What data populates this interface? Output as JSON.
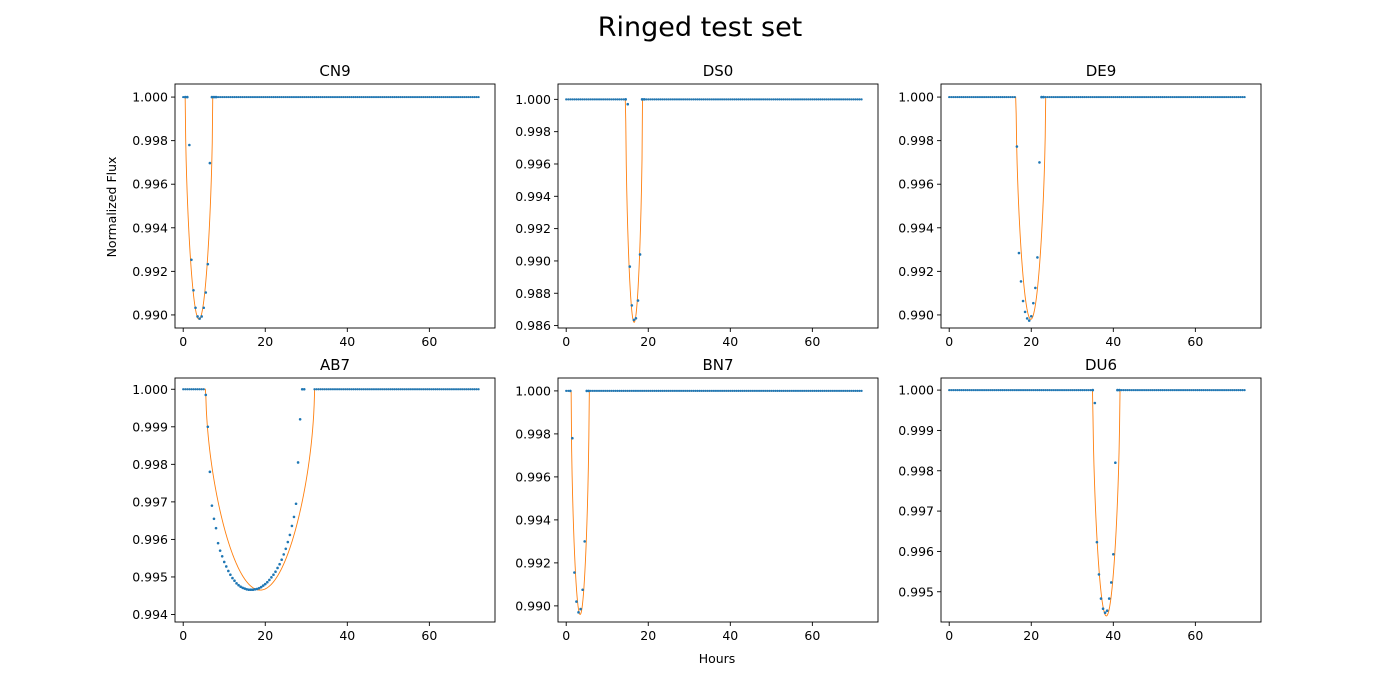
{
  "figure": {
    "title": "Ringed test set",
    "xlabel": "Hours",
    "ylabel": "Normalized Flux",
    "model_color": "#ff7f0e",
    "data_color": "#1f77b4"
  },
  "chart_data": [
    {
      "type": "scatter",
      "title": "CN9",
      "xlim": [
        -2,
        76
      ],
      "ylim": [
        0.9894,
        1.0006
      ],
      "xticks": [
        0,
        20,
        40,
        60
      ],
      "yticks": [
        0.99,
        0.992,
        0.994,
        0.996,
        0.998,
        1.0
      ],
      "ytick_labels": [
        "0.990",
        "0.992",
        "0.994",
        "0.996",
        "0.998",
        "1.000"
      ],
      "transit": {
        "start": 0.5,
        "end": 7.2,
        "depth": 0.0102
      },
      "series": [
        {
          "points": [
            [
              0.5,
              1.0
            ],
            [
              1.0,
              1.0
            ],
            [
              1.5,
              0.9978
            ],
            [
              2.0,
              0.99253
            ],
            [
              2.5,
              0.99113
            ],
            [
              3.0,
              0.99033
            ],
            [
              3.5,
              0.98993
            ],
            [
              4.0,
              0.98983
            ],
            [
              4.5,
              0.98993
            ],
            [
              5.0,
              0.99033
            ],
            [
              5.5,
              0.99103
            ],
            [
              6.0,
              0.99233
            ],
            [
              6.5,
              0.99697
            ],
            [
              7.0,
              1.0
            ],
            [
              7.5,
              1.0
            ],
            [
              8.0,
              1.0
            ]
          ]
        }
      ]
    },
    {
      "type": "scatter",
      "title": "DS0",
      "xlim": [
        -2,
        76
      ],
      "ylim": [
        0.98585,
        1.00095
      ],
      "xticks": [
        0,
        20,
        40,
        60
      ],
      "yticks": [
        0.986,
        0.988,
        0.99,
        0.992,
        0.994,
        0.996,
        0.998,
        1.0
      ],
      "ytick_labels": [
        "0.986",
        "0.988",
        "0.990",
        "0.992",
        "0.994",
        "0.996",
        "0.998",
        "1.000"
      ],
      "transit": {
        "start": 14.5,
        "end": 18.6,
        "depth": 0.0138
      },
      "series": [
        {
          "points": [
            [
              14.5,
              1.0
            ],
            [
              15.0,
              0.9997
            ],
            [
              15.5,
              0.98965
            ],
            [
              16.0,
              0.98725
            ],
            [
              16.5,
              0.98635
            ],
            [
              17.0,
              0.98645
            ],
            [
              17.5,
              0.98755
            ],
            [
              18.0,
              0.9904
            ],
            [
              18.5,
              1.0
            ],
            [
              19.0,
              1.0
            ]
          ]
        }
      ]
    },
    {
      "type": "scatter",
      "title": "DE9",
      "xlim": [
        -2,
        76
      ],
      "ylim": [
        0.9894,
        1.0006
      ],
      "xticks": [
        0,
        20,
        40,
        60
      ],
      "yticks": [
        0.99,
        0.992,
        0.994,
        0.996,
        0.998,
        1.0
      ],
      "ytick_labels": [
        "0.990",
        "0.992",
        "0.994",
        "0.996",
        "0.998",
        "1.000"
      ],
      "transit": {
        "start": 16.3,
        "end": 23.5,
        "depth": 0.0102
      },
      "series": [
        {
          "points": [
            [
              16.5,
              0.99773
            ],
            [
              17.0,
              0.99284
            ],
            [
              17.5,
              0.99154
            ],
            [
              18.0,
              0.99064
            ],
            [
              18.5,
              0.99014
            ],
            [
              19.0,
              0.98984
            ],
            [
              19.5,
              0.98974
            ],
            [
              20.0,
              0.98994
            ],
            [
              20.5,
              0.99054
            ],
            [
              21.0,
              0.99124
            ],
            [
              21.5,
              0.99264
            ],
            [
              22.0,
              0.997
            ],
            [
              22.5,
              1.0
            ],
            [
              23.0,
              1.0
            ]
          ]
        }
      ]
    },
    {
      "type": "scatter",
      "title": "AB7",
      "xlim": [
        -2,
        76
      ],
      "ylim": [
        0.9938,
        1.0003
      ],
      "xticks": [
        0,
        20,
        40,
        60
      ],
      "yticks": [
        0.994,
        0.995,
        0.996,
        0.997,
        0.998,
        0.999,
        1.0
      ],
      "ytick_labels": [
        "0.994",
        "0.995",
        "0.996",
        "0.997",
        "0.998",
        "0.999",
        "1.000"
      ],
      "transit": {
        "start": 5.5,
        "end": 32.0,
        "depth": 0.00535
      },
      "series": [
        {
          "points": [
            [
              5.5,
              0.99985
            ],
            [
              6.0,
              0.999
            ],
            [
              6.5,
              0.9978
            ],
            [
              7.0,
              0.9969
            ],
            [
              7.5,
              0.99655
            ],
            [
              8.0,
              0.9963
            ],
            [
              8.5,
              0.9959
            ],
            [
              9.0,
              0.9957
            ],
            [
              9.5,
              0.99555
            ],
            [
              10.0,
              0.9954
            ],
            [
              10.5,
              0.99528
            ],
            [
              11.0,
              0.99516
            ],
            [
              11.5,
              0.99506
            ],
            [
              12.0,
              0.99497
            ],
            [
              12.5,
              0.9949
            ],
            [
              13.0,
              0.99483
            ],
            [
              13.5,
              0.99478
            ],
            [
              14.0,
              0.99474
            ],
            [
              14.5,
              0.99471
            ],
            [
              15.0,
              0.99469
            ],
            [
              15.5,
              0.99467
            ],
            [
              16.0,
              0.99466
            ],
            [
              16.5,
              0.99466
            ],
            [
              17.0,
              0.99466
            ],
            [
              17.5,
              0.99467
            ],
            [
              18.0,
              0.99468
            ],
            [
              18.5,
              0.9947
            ],
            [
              19.0,
              0.99473
            ],
            [
              19.5,
              0.99477
            ],
            [
              20.0,
              0.99481
            ],
            [
              20.5,
              0.99486
            ],
            [
              21.0,
              0.99492
            ],
            [
              21.5,
              0.99499
            ],
            [
              22.0,
              0.99506
            ],
            [
              22.5,
              0.99514
            ],
            [
              23.0,
              0.99524
            ],
            [
              23.5,
              0.99534
            ],
            [
              24.0,
              0.99546
            ],
            [
              24.5,
              0.9956
            ],
            [
              25.0,
              0.99575
            ],
            [
              25.5,
              0.99593
            ],
            [
              26.0,
              0.99612
            ],
            [
              26.5,
              0.99636
            ],
            [
              27.0,
              0.9966
            ],
            [
              27.5,
              0.99695
            ],
            [
              28.0,
              0.99805
            ],
            [
              28.5,
              0.9992
            ],
            [
              29.0,
              1.0
            ],
            [
              29.5,
              1.0
            ]
          ]
        }
      ]
    },
    {
      "type": "scatter",
      "title": "BN7",
      "xlim": [
        -2,
        76
      ],
      "ylim": [
        0.98925,
        1.0006
      ],
      "xticks": [
        0,
        20,
        40,
        60
      ],
      "yticks": [
        0.99,
        0.992,
        0.994,
        0.996,
        0.998,
        1.0
      ],
      "ytick_labels": [
        "0.990",
        "0.992",
        "0.994",
        "0.996",
        "0.998",
        "1.000"
      ],
      "transit": {
        "start": 1.2,
        "end": 5.6,
        "depth": 0.0104
      },
      "series": [
        {
          "points": [
            [
              1.0,
              1.0
            ],
            [
              1.5,
              0.9978
            ],
            [
              2.0,
              0.99155
            ],
            [
              2.5,
              0.9902
            ],
            [
              3.0,
              0.9897
            ],
            [
              3.5,
              0.98985
            ],
            [
              4.0,
              0.99075
            ],
            [
              4.5,
              0.993
            ],
            [
              5.0,
              1.0
            ],
            [
              5.5,
              1.0
            ]
          ]
        }
      ]
    },
    {
      "type": "scatter",
      "title": "DU6",
      "xlim": [
        -2,
        76
      ],
      "ylim": [
        0.99425,
        1.0003
      ],
      "xticks": [
        0,
        20,
        40,
        60
      ],
      "yticks": [
        0.995,
        0.996,
        0.997,
        0.998,
        0.999,
        1.0
      ],
      "ytick_labels": [
        "0.995",
        "0.996",
        "0.997",
        "0.998",
        "0.999",
        "1.000"
      ],
      "transit": {
        "start": 35.0,
        "end": 41.6,
        "depth": 0.0056
      },
      "series": [
        {
          "points": [
            [
              35.0,
              1.0
            ],
            [
              35.5,
              0.99968
            ],
            [
              36.0,
              0.99623
            ],
            [
              36.5,
              0.99543
            ],
            [
              37.0,
              0.99483
            ],
            [
              37.5,
              0.99458
            ],
            [
              38.0,
              0.99448
            ],
            [
              38.5,
              0.99453
            ],
            [
              39.0,
              0.99483
            ],
            [
              39.5,
              0.99523
            ],
            [
              40.0,
              0.99593
            ],
            [
              40.5,
              0.9982
            ],
            [
              41.0,
              1.0
            ],
            [
              41.5,
              1.0
            ]
          ]
        }
      ]
    }
  ]
}
